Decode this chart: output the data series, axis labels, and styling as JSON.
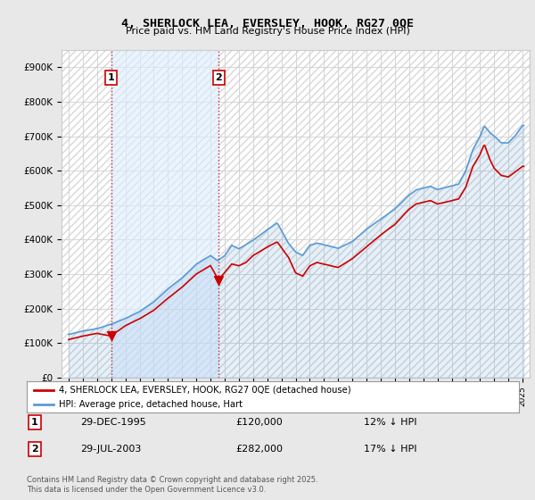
{
  "title": "4, SHERLOCK LEA, EVERSLEY, HOOK, RG27 0QE",
  "subtitle": "Price paid vs. HM Land Registry's House Price Index (HPI)",
  "bg_color": "#e8e8e8",
  "plot_bg": "#ffffff",
  "grid_color": "#cccccc",
  "hpi_color": "#5b9bd5",
  "hpi_fill_color": "#c5ddf0",
  "price_color": "#cc0000",
  "shade_color": "#ddeeff",
  "purchase1_x": 1995.99,
  "purchase1_y": 120000,
  "purchase2_x": 2003.58,
  "purchase2_y": 282000,
  "ylim": [
    0,
    950000
  ],
  "xlim_start": 1992.5,
  "xlim_end": 2025.5,
  "legend_line1": "4, SHERLOCK LEA, EVERSLEY, HOOK, RG27 0QE (detached house)",
  "legend_line2": "HPI: Average price, detached house, Hart",
  "note1_num": "1",
  "note1_date": "29-DEC-1995",
  "note1_price": "£120,000",
  "note1_hpi": "12% ↓ HPI",
  "note2_num": "2",
  "note2_date": "29-JUL-2003",
  "note2_price": "£282,000",
  "note2_hpi": "17% ↓ HPI",
  "footer": "Contains HM Land Registry data © Crown copyright and database right 2025.\nThis data is licensed under the Open Government Licence v3.0."
}
